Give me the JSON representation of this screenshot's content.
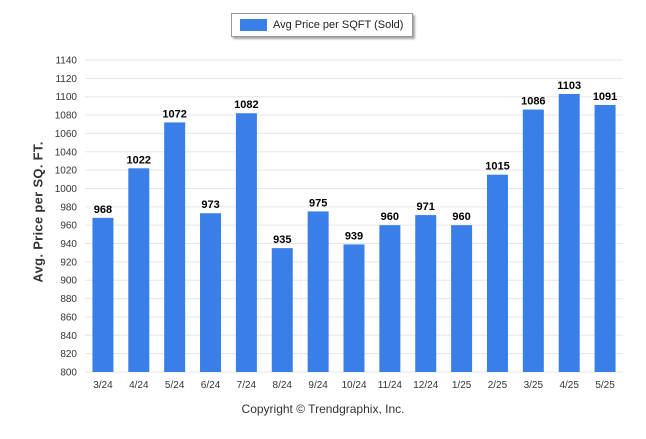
{
  "legend": {
    "label": "Avg Price per SQFT (Sold)"
  },
  "footer": {
    "copyright": "Copyright © Trendgraphix, Inc."
  },
  "colors": {
    "bar": "#3a7fe8",
    "grid": "#e6e6e6",
    "axis_text": "#333333"
  },
  "chart_data": {
    "type": "bar",
    "title": "",
    "xlabel": "",
    "ylabel": "Avg. Price per SQ. FT.",
    "categories": [
      "3/24",
      "4/24",
      "5/24",
      "6/24",
      "7/24",
      "8/24",
      "9/24",
      "10/24",
      "11/24",
      "12/24",
      "1/25",
      "2/25",
      "3/25",
      "4/25",
      "5/25"
    ],
    "series": [
      {
        "name": "Avg Price per SQFT (Sold)",
        "values": [
          968,
          1022,
          1072,
          973,
          1082,
          935,
          975,
          939,
          960,
          971,
          960,
          1015,
          1086,
          1103,
          1091
        ]
      }
    ],
    "ylim": [
      800,
      1140
    ],
    "yticks": [
      800,
      820,
      840,
      860,
      880,
      900,
      920,
      940,
      960,
      980,
      1000,
      1020,
      1040,
      1060,
      1080,
      1100,
      1120,
      1140
    ],
    "grid": true,
    "legend_position": "top-center",
    "data_labels": true
  }
}
